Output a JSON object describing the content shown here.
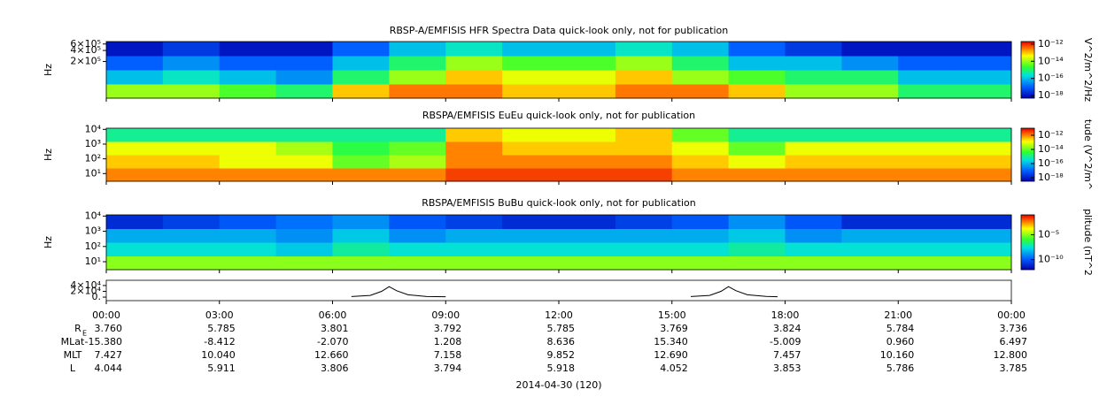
{
  "chart_data": [
    {
      "type": "heatmap",
      "title": "RBSP-A/EMFISIS  HFR Spectra Data quick-look only, not for publication",
      "ylabel": "Hz",
      "xlim": [
        0,
        24
      ],
      "ylim": [
        20000,
        700000
      ],
      "ylog": true,
      "yticks": [
        {
          "value": 600000,
          "label": "6×10⁵"
        },
        {
          "value": 400000,
          "label": "4×10⁵"
        },
        {
          "value": 200000,
          "label": "2×10⁵"
        }
      ],
      "zlim": [
        -18.3,
        -11.7
      ],
      "zticks": [
        {
          "value": -12,
          "label": "10⁻¹²"
        },
        {
          "value": -14,
          "label": "10⁻¹⁴"
        },
        {
          "value": -16,
          "label": "10⁻¹⁶"
        },
        {
          "value": -18,
          "label": "10⁻¹⁸"
        }
      ],
      "colorbar_label": "V^2/m^2/Hz",
      "z": [
        [
          -14,
          -14,
          -14.5,
          -15,
          -13,
          -12.5,
          -12.5,
          -13,
          -13,
          -12.5,
          -12.5,
          -13,
          -14,
          -14,
          -15,
          -15
        ],
        [
          -16,
          -15.5,
          -16,
          -16.5,
          -15,
          -14,
          -13,
          -13.5,
          -13.5,
          -13,
          -14,
          -14.5,
          -15,
          -15,
          -16,
          -16
        ],
        [
          -17,
          -16.5,
          -17,
          -17,
          -16,
          -15,
          -14,
          -14.5,
          -14.5,
          -14,
          -15,
          -16,
          -16,
          -16.5,
          -17,
          -17
        ],
        [
          -18,
          -17.5,
          -18,
          -18,
          -17,
          -16,
          -15.5,
          -16,
          -16,
          -15.5,
          -16,
          -17,
          -17.5,
          -18,
          -18,
          -18
        ]
      ]
    },
    {
      "type": "heatmap",
      "title": "RBSPA/EMFISIS  EuEu quick-look only, not for publication",
      "ylabel": "Hz",
      "xlim": [
        0,
        24
      ],
      "ylim": [
        3,
        12000
      ],
      "ylog": true,
      "yticks": [
        {
          "value": 10000,
          "label": "10⁴"
        },
        {
          "value": 1000,
          "label": "10³"
        },
        {
          "value": 100,
          "label": "10²"
        },
        {
          "value": 10,
          "label": "10¹"
        }
      ],
      "zlim": [
        -18.5,
        -11
      ],
      "zticks": [
        {
          "value": -12,
          "label": "10⁻¹²"
        },
        {
          "value": -14,
          "label": "10⁻¹⁴"
        },
        {
          "value": -16,
          "label": "10⁻¹⁶"
        },
        {
          "value": -18,
          "label": "10⁻¹⁸"
        }
      ],
      "colorbar_label": "tude (V^2/m^",
      "z": [
        [
          -12,
          -12,
          -12,
          -12,
          -12,
          -12,
          -11.5,
          -11.5,
          -11.5,
          -11.5,
          -12,
          -12,
          -12,
          -12,
          -12,
          -12
        ],
        [
          -12.5,
          -12.5,
          -13,
          -13,
          -14,
          -13.5,
          -12,
          -12,
          -12,
          -12,
          -12.5,
          -13,
          -12.5,
          -12.5,
          -12.5,
          -12.5
        ],
        [
          -13,
          -13,
          -13,
          -13.5,
          -14.5,
          -14,
          -12,
          -12.5,
          -12.5,
          -12.5,
          -13,
          -14,
          -13,
          -13,
          -13,
          -13
        ],
        [
          -15,
          -15,
          -15,
          -15,
          -15,
          -15,
          -12.5,
          -13,
          -13,
          -12.5,
          -14,
          -15,
          -15,
          -15,
          -15,
          -15
        ]
      ]
    },
    {
      "type": "heatmap",
      "title": "RBSPA/EMFISIS  BuBu quick-look only, not for publication",
      "ylabel": "Hz",
      "xlim": [
        0,
        24
      ],
      "ylim": [
        3,
        12000
      ],
      "ylog": true,
      "yticks": [
        {
          "value": 10000,
          "label": "10⁴"
        },
        {
          "value": 1000,
          "label": "10³"
        },
        {
          "value": 100,
          "label": "10²"
        },
        {
          "value": 10,
          "label": "10¹"
        }
      ],
      "zlim": [
        -12,
        -1
      ],
      "zticks": [
        {
          "value": -5,
          "label": "10⁻⁵"
        },
        {
          "value": -10,
          "label": "10⁻¹⁰"
        }
      ],
      "colorbar_label": "plitude (nT^2",
      "z": [
        [
          -5,
          -5,
          -5,
          -5,
          -5,
          -5,
          -5,
          -5,
          -5,
          -5,
          -5,
          -5,
          -5,
          -5,
          -5,
          -5
        ],
        [
          -7.5,
          -7.5,
          -7.5,
          -8,
          -7,
          -7.5,
          -7.5,
          -7.5,
          -7.5,
          -7.5,
          -7.5,
          -7,
          -7.5,
          -7.5,
          -7.5,
          -7.5
        ],
        [
          -8.5,
          -8.5,
          -8.5,
          -9,
          -8,
          -9,
          -8.5,
          -8.5,
          -8.5,
          -8.5,
          -8.5,
          -8,
          -9,
          -8.5,
          -8.5,
          -8.5
        ],
        [
          -11,
          -10.5,
          -10,
          -9.5,
          -9,
          -10,
          -10.5,
          -11,
          -11,
          -10.5,
          -10,
          -9,
          -10,
          -11,
          -11,
          -11
        ]
      ]
    },
    {
      "type": "line",
      "xlim": [
        0,
        24
      ],
      "ylim": [
        -12000,
        58000
      ],
      "yticks": [
        {
          "value": 40000,
          "label": "4×10⁴"
        },
        {
          "value": 20000,
          "label": "2×10⁴"
        },
        {
          "value": 0,
          "label": "0."
        }
      ],
      "xticks": [
        {
          "value": 0,
          "label": "00:00"
        },
        {
          "value": 3,
          "label": "03:00"
        },
        {
          "value": 6,
          "label": "06:00"
        },
        {
          "value": 9,
          "label": "09:00"
        },
        {
          "value": 12,
          "label": "12:00"
        },
        {
          "value": 15,
          "label": "15:00"
        },
        {
          "value": 18,
          "label": "18:00"
        },
        {
          "value": 21,
          "label": "21:00"
        },
        {
          "value": 24,
          "label": "00:00"
        }
      ],
      "x": [
        0,
        6.5,
        7.0,
        7.3,
        7.5,
        7.7,
        8.0,
        8.5,
        9.0,
        9.5,
        15.5,
        16.0,
        16.3,
        16.5,
        16.7,
        17.0,
        17.5,
        17.8,
        24
      ],
      "values": [
        null,
        2000,
        6000,
        20000,
        36000,
        22000,
        8000,
        2000,
        1500,
        null,
        2000,
        6000,
        20000,
        36000,
        22000,
        8000,
        2500,
        1500,
        null
      ],
      "color": "#000000"
    }
  ],
  "ephemeris": {
    "rows": [
      {
        "label": "R",
        "sub": "E",
        "values": [
          "3.760",
          "5.785",
          "3.801",
          "3.792",
          "5.785",
          "3.769",
          "3.824",
          "5.784",
          "3.736"
        ]
      },
      {
        "label": "MLat",
        "values": [
          "-15.380",
          "-8.412",
          "-2.070",
          "1.208",
          "8.636",
          "15.340",
          "-5.009",
          "0.960",
          "6.497"
        ]
      },
      {
        "label": "MLT",
        "values": [
          "7.427",
          "10.040",
          "12.660",
          "7.158",
          "9.852",
          "12.690",
          "7.457",
          "10.160",
          "12.800"
        ]
      },
      {
        "label": "L",
        "values": [
          "4.044",
          "5.911",
          "3.806",
          "3.794",
          "5.918",
          "4.052",
          "3.853",
          "5.786",
          "3.785"
        ]
      }
    ],
    "date": "2014-04-30 (120)"
  }
}
